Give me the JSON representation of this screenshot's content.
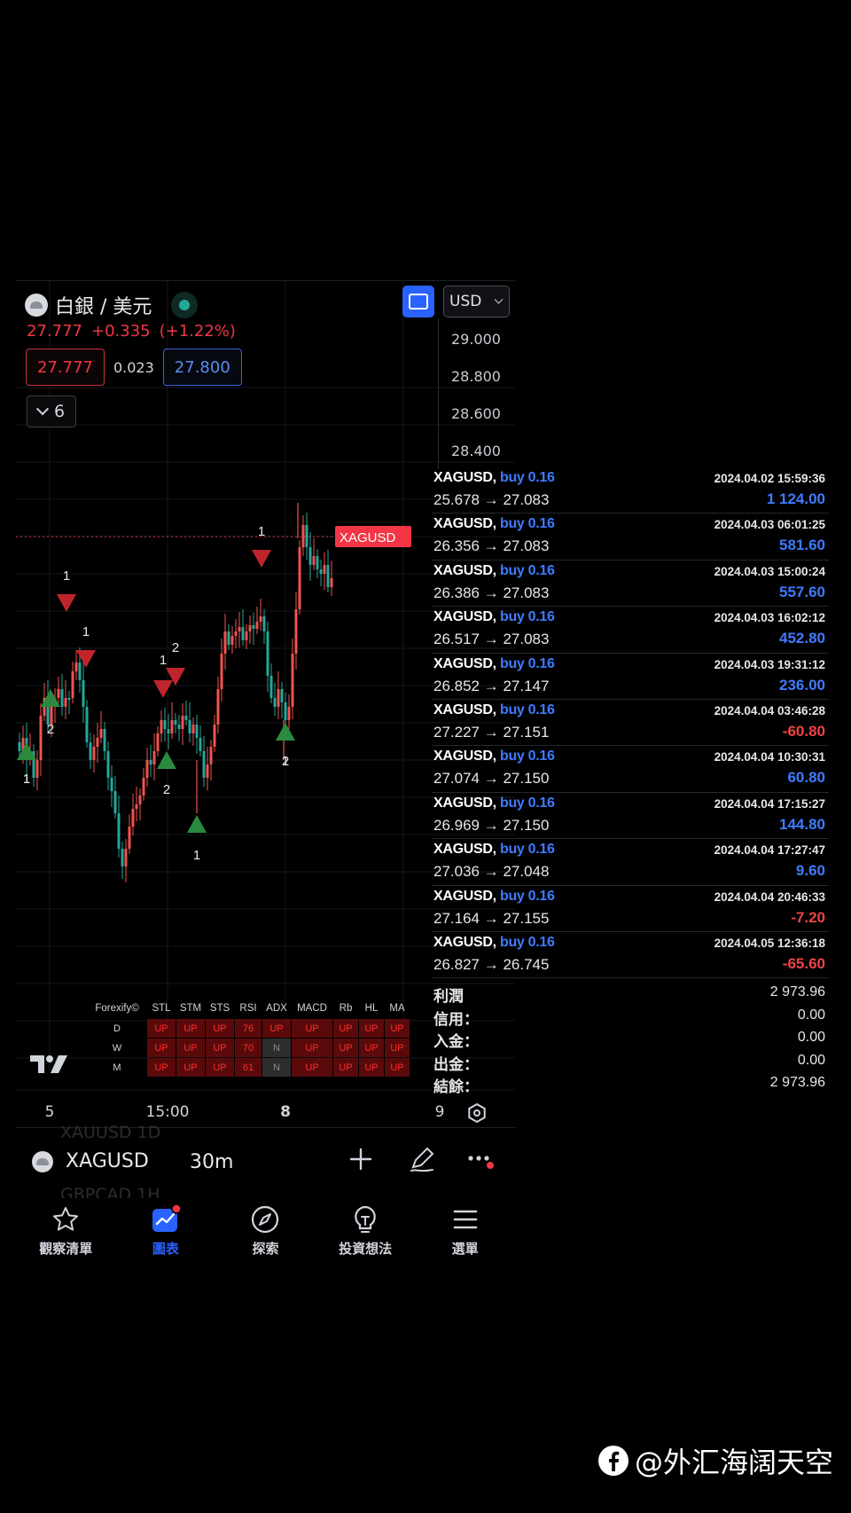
{
  "header": {
    "symbol_title": "白銀 / 美元",
    "last_price": "27.777",
    "change": "+0.335",
    "change_pct": "(+1.22%)",
    "bid": "27.777",
    "spread": "0.023",
    "ask": "27.800",
    "interval_count": "6",
    "currency": "USD"
  },
  "price_axis": {
    "ticks": [
      "29.000",
      "28.800",
      "28.600",
      "28.400"
    ]
  },
  "chart": {
    "price_label": "XAGUSD",
    "time_ticks": [
      "5",
      "15:00",
      "8",
      "9"
    ],
    "signal_labels": [
      "1",
      "1",
      "1",
      "2",
      "1",
      "2",
      "2",
      "1",
      "1",
      "2",
      "1",
      "1"
    ]
  },
  "indicators": {
    "brand": "Forexify©",
    "columns": [
      "STL",
      "STM",
      "STS",
      "RSI",
      "ADX",
      "MACD",
      "Rb",
      "HL",
      "MA"
    ],
    "rows": [
      {
        "tf": "D",
        "cells": [
          "UP",
          "UP",
          "UP",
          "76",
          "UP",
          "UP",
          "UP",
          "UP",
          "UP"
        ]
      },
      {
        "tf": "W",
        "cells": [
          "UP",
          "UP",
          "UP",
          "70",
          "N",
          "UP",
          "UP",
          "UP",
          "UP"
        ]
      },
      {
        "tf": "M",
        "cells": [
          "UP",
          "UP",
          "UP",
          "61",
          "N",
          "UP",
          "UP",
          "UP",
          "UP"
        ]
      }
    ]
  },
  "toolbar": {
    "symbol": "XAGUSD",
    "interval": "30m",
    "ghost_above": "XAUUSD   1D",
    "ghost_below": "GBPCAD   1H"
  },
  "nav": [
    {
      "label": "觀察清單",
      "icon": "star-icon"
    },
    {
      "label": "圖表",
      "icon": "chart-icon"
    },
    {
      "label": "探索",
      "icon": "compass-icon"
    },
    {
      "label": "投資想法",
      "icon": "lightbulb-icon"
    },
    {
      "label": "選單",
      "icon": "menu-icon"
    }
  ],
  "trades": [
    {
      "symbol": "XAGUSD,",
      "side": "buy 0.16",
      "time": "2024.04.02 15:59:36",
      "prices": "25.678 → 27.083",
      "profit": "1 124.00",
      "sign": "pos"
    },
    {
      "symbol": "XAGUSD,",
      "side": "buy 0.16",
      "time": "2024.04.03 06:01:25",
      "prices": "26.356 → 27.083",
      "profit": "581.60",
      "sign": "pos"
    },
    {
      "symbol": "XAGUSD,",
      "side": "buy 0.16",
      "time": "2024.04.03 15:00:24",
      "prices": "26.386 → 27.083",
      "profit": "557.60",
      "sign": "pos"
    },
    {
      "symbol": "XAGUSD,",
      "side": "buy 0.16",
      "time": "2024.04.03 16:02:12",
      "prices": "26.517 → 27.083",
      "profit": "452.80",
      "sign": "pos"
    },
    {
      "symbol": "XAGUSD,",
      "side": "buy 0.16",
      "time": "2024.04.03 19:31:12",
      "prices": "26.852 → 27.147",
      "profit": "236.00",
      "sign": "pos"
    },
    {
      "symbol": "XAGUSD,",
      "side": "buy 0.16",
      "time": "2024.04.04 03:46:28",
      "prices": "27.227 → 27.151",
      "profit": "-60.80",
      "sign": "neg"
    },
    {
      "symbol": "XAGUSD,",
      "side": "buy 0.16",
      "time": "2024.04.04 10:30:31",
      "prices": "27.074 → 27.150",
      "profit": "60.80",
      "sign": "pos"
    },
    {
      "symbol": "XAGUSD,",
      "side": "buy 0.16",
      "time": "2024.04.04 17:15:27",
      "prices": "26.969 → 27.150",
      "profit": "144.80",
      "sign": "pos"
    },
    {
      "symbol": "XAGUSD,",
      "side": "buy 0.16",
      "time": "2024.04.04 17:27:47",
      "prices": "27.036 → 27.048",
      "profit": "9.60",
      "sign": "pos"
    },
    {
      "symbol": "XAGUSD,",
      "side": "buy 0.16",
      "time": "2024.04.04 20:46:33",
      "prices": "27.164 → 27.155",
      "profit": "-7.20",
      "sign": "neg"
    },
    {
      "symbol": "XAGUSD,",
      "side": "buy 0.16",
      "time": "2024.04.05 12:36:18",
      "prices": "26.827 → 26.745",
      "profit": "-65.60",
      "sign": "neg"
    }
  ],
  "summary": [
    {
      "label": "利潤",
      "value": "2 973.96"
    },
    {
      "label": "信用：",
      "value": "0.00"
    },
    {
      "label": "入金：",
      "value": "0.00"
    },
    {
      "label": "出金：",
      "value": "0.00"
    },
    {
      "label": "結餘：",
      "value": "2 973.96"
    }
  ],
  "watermark": "@外汇海阔天空",
  "colors": {
    "up_candle": "#ef5350",
    "down_candle": "#26a69a",
    "accent": "#2962ff",
    "buy_text": "#3f7bff",
    "loss": "#ef4444"
  }
}
